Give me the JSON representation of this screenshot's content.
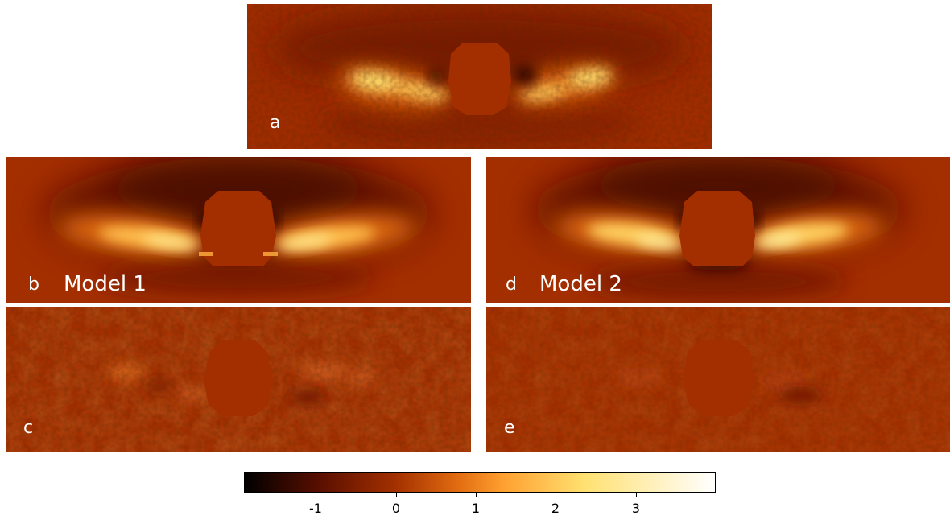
{
  "panels": {
    "a": {
      "letter": "a"
    },
    "b": {
      "letter": "b",
      "model": "Model 1"
    },
    "c": {
      "letter": "c"
    },
    "d": {
      "letter": "d",
      "model": "Model 2"
    },
    "e": {
      "letter": "e"
    }
  },
  "colorbar": {
    "colormap": "afmhot",
    "range": [
      -1.9,
      4.0
    ],
    "ticks": [
      {
        "value": -1,
        "label": "-1"
      },
      {
        "value": 0,
        "label": "0"
      },
      {
        "value": 1,
        "label": "1"
      },
      {
        "value": 2,
        "label": "2"
      },
      {
        "value": 3,
        "label": "3"
      }
    ],
    "stops": [
      "#000000",
      "#5a0f00",
      "#a33000",
      "#e06a10",
      "#ffa030",
      "#ffe070",
      "#ffffff"
    ]
  }
}
